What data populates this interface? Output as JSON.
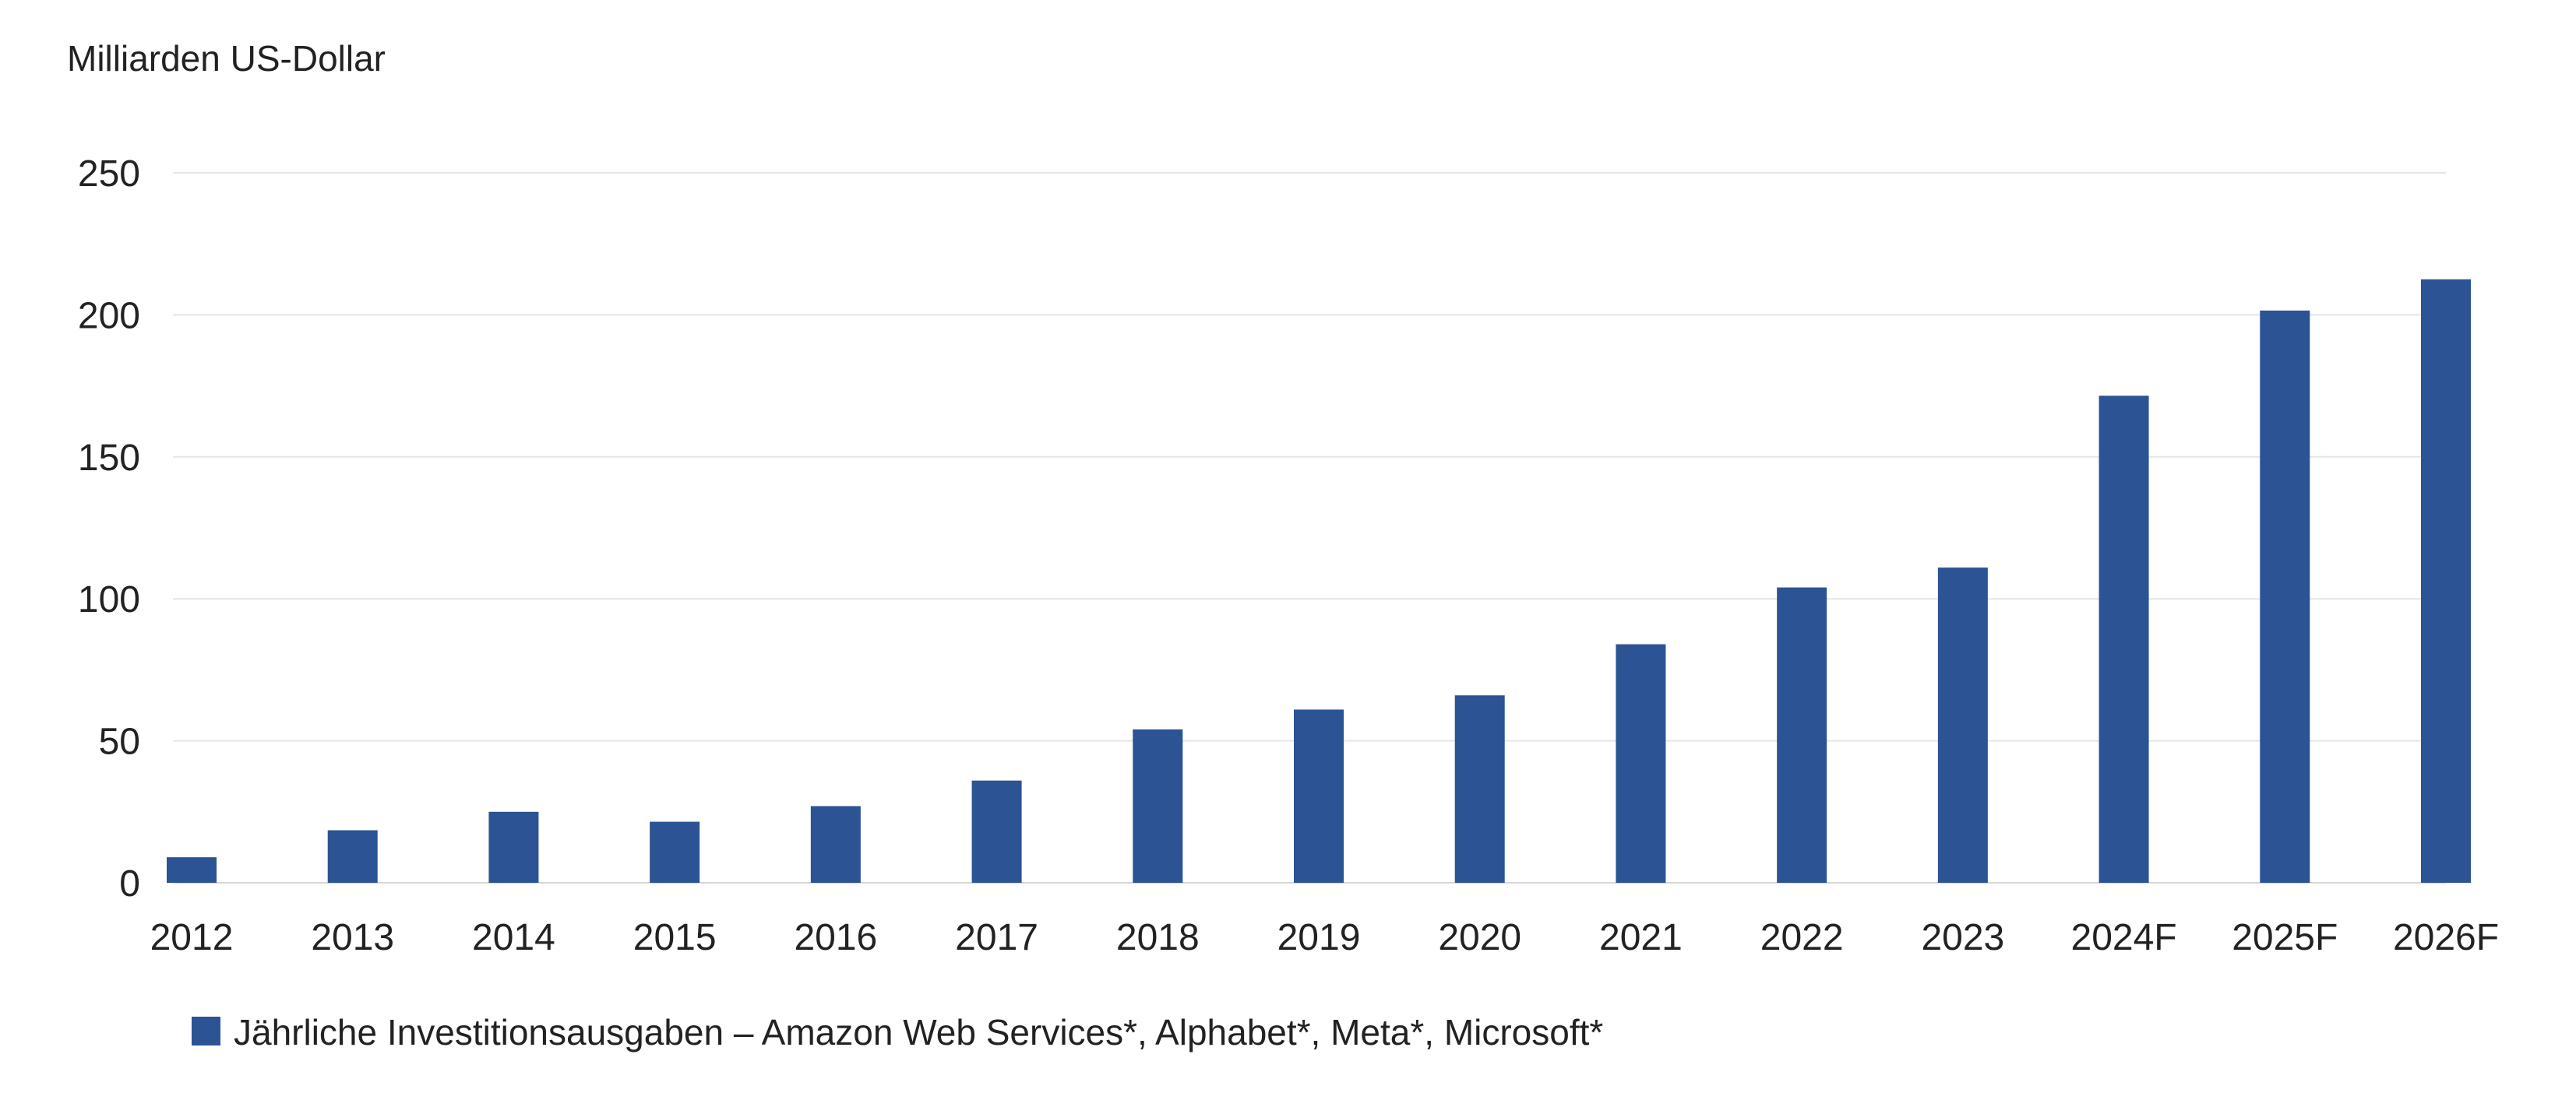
{
  "chart_data": {
    "type": "bar",
    "title": "",
    "xlabel": "",
    "ylabel": "Milliarden US-Dollar",
    "ylim": [
      0,
      250
    ],
    "yticks": [
      0,
      50,
      100,
      150,
      200,
      250
    ],
    "grid": true,
    "legend_position": "bottom-left",
    "categories": [
      "2012",
      "2013",
      "2014",
      "2015",
      "2016",
      "2017",
      "2018",
      "2019",
      "2020",
      "2021",
      "2022",
      "2023",
      "2024F",
      "2025F",
      "2026F"
    ],
    "series": [
      {
        "name": "Jährliche Investitionsausgaben – Amazon Web Services*, Alphabet*, Meta*, Microsoft*",
        "color": "#2c5393",
        "values": [
          9,
          18.5,
          25,
          21.5,
          27,
          36,
          54,
          61,
          66,
          84,
          104,
          111,
          171.5,
          201.5,
          212.5
        ]
      }
    ]
  }
}
